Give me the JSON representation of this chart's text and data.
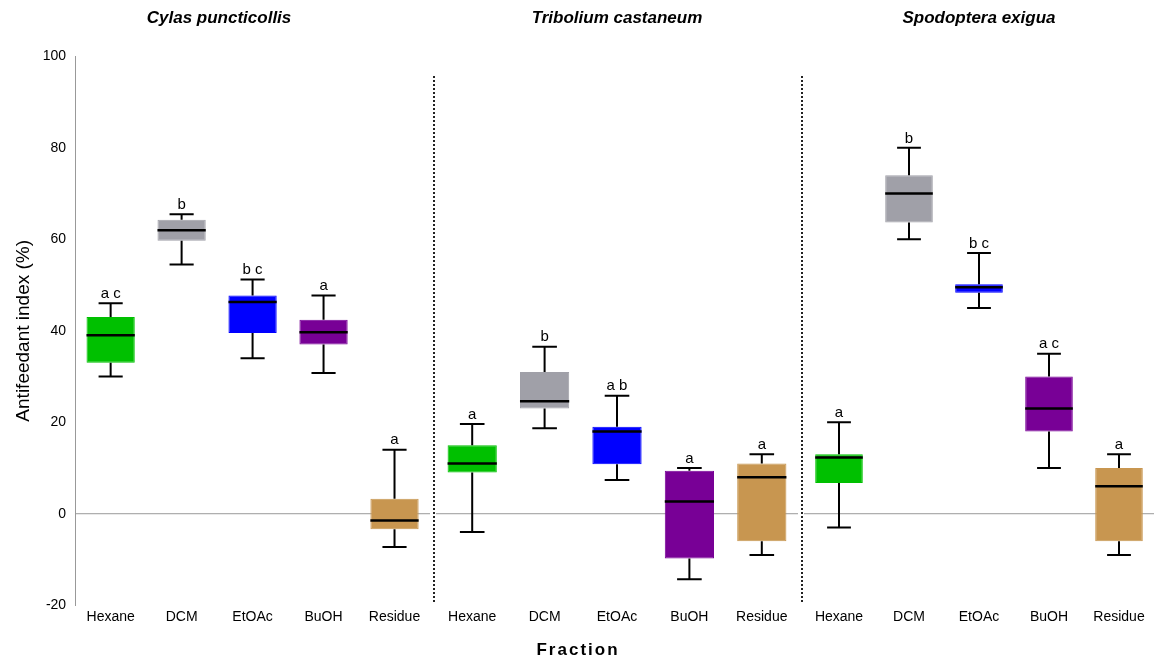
{
  "chart_data": [
    {
      "type": "box",
      "title": "Cylas puncticollis",
      "ylabel": "Antifeedant index (%)",
      "categories": [
        "Hexane",
        "DCM",
        "EtOAc",
        "BuOH",
        "Residue"
      ],
      "colors": [
        "#00c000",
        "#a0a0a8",
        "#0000ff",
        "#780096",
        "#c89650"
      ],
      "ylim": [
        -20,
        100
      ],
      "yticks": [
        -20,
        0,
        20,
        40,
        60,
        80,
        100
      ],
      "grid": false,
      "ref_lines": [
        {
          "axis": "y",
          "value": 0,
          "color": "#999999"
        }
      ],
      "boxes": [
        {
          "low": 30,
          "q1": 33,
          "median": 39,
          "q3": 43,
          "high": 46
        },
        {
          "low": 54.5,
          "q1": 59.7,
          "median": 62,
          "q3": 64.3,
          "high": 65.5
        },
        {
          "low": 34,
          "q1": 39.5,
          "median": 46.3,
          "q3": 47.7,
          "high": 51.2
        },
        {
          "low": 30.8,
          "q1": 37,
          "median": 39.7,
          "q3": 42.4,
          "high": 47.7
        },
        {
          "low": -7.3,
          "q1": -3.4,
          "median": -1.5,
          "q3": 3.3,
          "high": 14
        }
      ],
      "annotations": [
        {
          "text": "a c",
          "x": "Hexane",
          "y": 46
        },
        {
          "text": "b",
          "x": "DCM",
          "y": 65.5
        },
        {
          "text": "b c",
          "x": "EtOAc",
          "y": 51.2
        },
        {
          "text": "a",
          "x": "BuOH",
          "y": 47.7
        },
        {
          "text": "a",
          "x": "Residue",
          "y": 14
        }
      ]
    },
    {
      "type": "box",
      "title": "Tribolium castaneum",
      "xlabel": "Fraction",
      "categories": [
        "Hexane",
        "DCM",
        "EtOAc",
        "BuOH",
        "Residue"
      ],
      "colors": [
        "#00c000",
        "#a0a0a8",
        "#0000ff",
        "#780096",
        "#c89650"
      ],
      "ylim": [
        -20,
        100
      ],
      "tick_labels": "x",
      "grid": false,
      "ref_lines": [
        {
          "axis": "y",
          "value": 0,
          "color": "#999999"
        }
      ],
      "boxes": [
        {
          "low": -4,
          "q1": 9,
          "median": 11,
          "q3": 15,
          "high": 19.6
        },
        {
          "low": 18.7,
          "q1": 23,
          "median": 24.6,
          "q3": 31,
          "high": 36.5
        },
        {
          "low": 7.4,
          "q1": 10.8,
          "median": 18,
          "q3": 19,
          "high": 25.8
        },
        {
          "low": -14.3,
          "q1": -9.8,
          "median": 2.7,
          "q3": 9.4,
          "high": 10
        },
        {
          "low": -9,
          "q1": -6,
          "median": 8,
          "q3": 11,
          "high": 13
        }
      ],
      "annotations": [
        {
          "text": "a",
          "x": "Hexane",
          "y": 19.6
        },
        {
          "text": "b",
          "x": "DCM",
          "y": 36.5
        },
        {
          "text": "a b",
          "x": "EtOAc",
          "y": 25.8
        },
        {
          "text": "a",
          "x": "BuOH",
          "y": 10
        },
        {
          "text": "a",
          "x": "Residue",
          "y": 13
        }
      ]
    },
    {
      "type": "box",
      "title": "Spodoptera exigua",
      "categories": [
        "Hexane",
        "DCM",
        "EtOAc",
        "BuOH",
        "Residue"
      ],
      "colors": [
        "#00c000",
        "#a0a0a8",
        "#0000ff",
        "#780096",
        "#c89650"
      ],
      "ylim": [
        -20,
        100
      ],
      "tick_labels": "x",
      "grid": false,
      "ref_lines": [
        {
          "axis": "y",
          "value": 0,
          "color": "#999999"
        }
      ],
      "boxes": [
        {
          "low": -3,
          "q1": 6.7,
          "median": 12.3,
          "q3": 13,
          "high": 20
        },
        {
          "low": 60,
          "q1": 63.7,
          "median": 70,
          "q3": 74,
          "high": 80
        },
        {
          "low": 45,
          "q1": 48.3,
          "median": 49.5,
          "q3": 50.2,
          "high": 57
        },
        {
          "low": 10,
          "q1": 18,
          "median": 23,
          "q3": 30,
          "high": 35
        },
        {
          "low": -9,
          "q1": -6,
          "median": 6,
          "q3": 10,
          "high": 13
        }
      ],
      "annotations": [
        {
          "text": "a",
          "x": "Hexane",
          "y": 20
        },
        {
          "text": "b",
          "x": "DCM",
          "y": 80
        },
        {
          "text": "b c",
          "x": "EtOAc",
          "y": 57
        },
        {
          "text": "a c",
          "x": "BuOH",
          "y": 35
        },
        {
          "text": "a",
          "x": "Residue",
          "y": 13
        }
      ]
    }
  ]
}
